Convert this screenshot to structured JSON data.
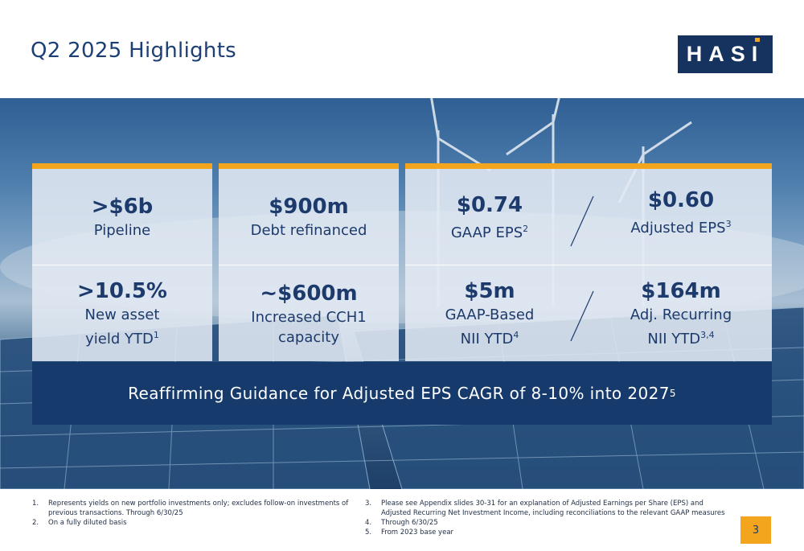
{
  "title": "Q2 2025 Highlights",
  "logo": {
    "text": "HASI"
  },
  "colors": {
    "navy": "#163a6c",
    "accent": "#f3a51d",
    "card": "#e2e9f2"
  },
  "metrics": {
    "pipeline": {
      "value": ">$6b",
      "label": "Pipeline"
    },
    "debt": {
      "value": "$900m",
      "label": "Debt refinanced"
    },
    "gaap_eps": {
      "value": "$0.74",
      "label": "GAAP EPS",
      "note": "2"
    },
    "adj_eps": {
      "value": "$0.60",
      "label": "Adjusted EPS",
      "note": "3"
    },
    "yield": {
      "value": ">10.5%",
      "label_line1": "New asset",
      "label_line2": "yield YTD",
      "note": "1"
    },
    "cch1": {
      "value": "~$600m",
      "label_line1": "Increased CCH1",
      "label_line2": "capacity"
    },
    "gaap_nii": {
      "value": "$5m",
      "label_line1": "GAAP-Based",
      "label_line2": "NII YTD",
      "note": "4"
    },
    "adj_nii": {
      "value": "$164m",
      "label_line1": "Adj. Recurring",
      "label_line2": "NII YTD",
      "note": "3,4"
    }
  },
  "banner": {
    "text": "Reaffirming Guidance for Adjusted EPS CAGR of 8-10% into 2027",
    "note": "5"
  },
  "footnotes": [
    {
      "num": "1.",
      "text": "Represents yields on new portfolio investments only; excludes follow-on investments of previous transactions. Through 6/30/25"
    },
    {
      "num": "2.",
      "text": "On a fully diluted basis"
    },
    {
      "num": "3.",
      "text": "Please see Appendix slides 30-31 for an explanation of Adjusted Earnings per Share (EPS) and Adjusted Recurring Net Investment Income, including reconciliations to the relevant GAAP measures"
    },
    {
      "num": "4.",
      "text": "Through 6/30/25"
    },
    {
      "num": "5.",
      "text": "From 2023 base year"
    }
  ],
  "page_number": "3"
}
